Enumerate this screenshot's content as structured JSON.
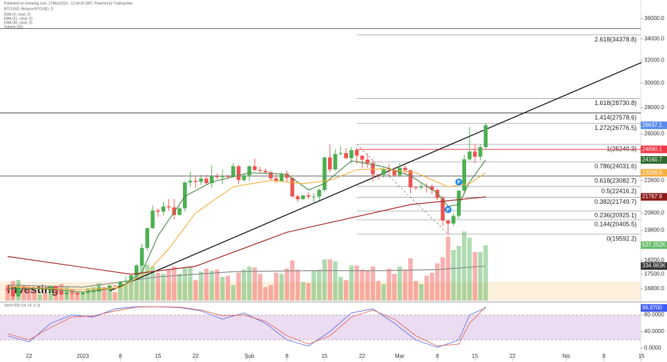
{
  "chart_data": {
    "type": "candlestick",
    "published": "Published on Investing.com, 17/Mar/2023 - 12:34:20 GMT, Powered by TradingView",
    "symbol": "BTC/USD, Binance:BTCUSD, D",
    "watermark": "Investing",
    "log_scale": true,
    "ylim": [
      16250,
      37200
    ],
    "yticks": [
      {
        "value": 36000,
        "label": "36000.0"
      },
      {
        "value": 34000,
        "label": "34000.0"
      },
      {
        "value": 32000,
        "label": "32000.0"
      },
      {
        "value": 30000,
        "label": "30000.0"
      },
      {
        "value": 28000,
        "label": "28000.0"
      },
      {
        "value": 26000,
        "label": "26000.0"
      },
      {
        "value": 22800,
        "label": "22800.0"
      },
      {
        "value": 20800,
        "label": "20800.0"
      },
      {
        "value": 19800,
        "label": "19800.0"
      },
      {
        "value": 18200,
        "label": "18200.0"
      },
      {
        "value": 17500,
        "label": "17500.0"
      },
      {
        "value": 16800,
        "label": "16800.0"
      }
    ],
    "xticks": [
      {
        "value": 4,
        "label": "22"
      },
      {
        "value": 14,
        "label": "2023"
      },
      {
        "value": 21,
        "label": "8"
      },
      {
        "value": 28,
        "label": "15"
      },
      {
        "value": 35,
        "label": "22"
      },
      {
        "value": 45,
        "label": "Şub"
      },
      {
        "value": 52,
        "label": "8"
      },
      {
        "value": 59,
        "label": "15"
      },
      {
        "value": 66,
        "label": "22"
      },
      {
        "value": 73,
        "label": "Mar"
      },
      {
        "value": 80,
        "label": "8"
      },
      {
        "value": 87,
        "label": "15"
      },
      {
        "value": 94,
        "label": "22"
      },
      {
        "value": 104,
        "label": "Nis"
      },
      {
        "value": 111,
        "label": "8"
      },
      {
        "value": 118,
        "label": "15"
      }
    ],
    "up_color": "#4caf50",
    "down_color": "#ef5350",
    "open": [
      16800,
      16750,
      16440,
      16900,
      16830,
      16820,
      16780,
      16840,
      16830,
      16920,
      16700,
      16540,
      16630,
      16600,
      16540,
      16610,
      16670,
      16670,
      16850,
      16830,
      16950,
      16940,
      17120,
      17180,
      17440,
      17940,
      18850,
      19930,
      20950,
      20880,
      21190,
      21130,
      20680,
      21080,
      22670,
      22780,
      22710,
      22920,
      22630,
      23060,
      23010,
      23080,
      23030,
      23740,
      22830,
      23130,
      23730,
      23490,
      23430,
      23330,
      22930,
      22760,
      23240,
      22960,
      21800,
      21630,
      21860,
      21780,
      21780,
      22200,
      24330,
      23520,
      24570,
      24630,
      24280,
      24840,
      24450,
      24180,
      23940,
      23190,
      23160,
      23560,
      23490,
      23140,
      23630,
      23470,
      22360,
      22350,
      22430,
      22410,
      22200,
      21700,
      20360,
      20190,
      20630,
      22160,
      24200,
      24740,
      24380,
      25050
    ],
    "high": [
      16900,
      16800,
      17050,
      16960,
      16950,
      16860,
      16870,
      16860,
      16950,
      16960,
      16790,
      16650,
      16660,
      16630,
      16630,
      16760,
      16780,
      16990,
      16870,
      17000,
      16960,
      17170,
      17390,
      17480,
      18000,
      19080,
      19950,
      21260,
      21080,
      21470,
      21640,
      21650,
      21190,
      22750,
      23360,
      23080,
      23160,
      23180,
      23790,
      23260,
      23520,
      23170,
      23950,
      23810,
      23280,
      23800,
      24240,
      23700,
      23580,
      23420,
      23160,
      23340,
      23450,
      22990,
      21930,
      21900,
      22070,
      21990,
      22320,
      24370,
      25250,
      24890,
      25120,
      24990,
      25050,
      25000,
      24480,
      24600,
      24130,
      23220,
      23690,
      23890,
      23650,
      23950,
      23790,
      23480,
      22410,
      22610,
      22600,
      22540,
      22280,
      21840,
      20360,
      20790,
      22180,
      24500,
      26500,
      25250,
      25240,
      26820
    ],
    "low": [
      16680,
      16300,
      16400,
      16760,
      16570,
      16750,
      16770,
      16780,
      16800,
      16600,
      16460,
      16340,
      16500,
      16490,
      16520,
      16550,
      16600,
      16650,
      16760,
      16670,
      16910,
      16910,
      17110,
      17150,
      17320,
      17910,
      18710,
      19890,
      20560,
      20650,
      20930,
      20420,
      20660,
      20880,
      22400,
      22300,
      22510,
      22560,
      22340,
      22880,
      22550,
      22880,
      22980,
      22580,
      22720,
      22750,
      23380,
      23250,
      23260,
      22760,
      22640,
      22750,
      22680,
      21700,
      21450,
      21600,
      21630,
      21360,
      21550,
      22050,
      23340,
      23440,
      24440,
      24200,
      23900,
      23930,
      23600,
      23620,
      22730,
      22860,
      22980,
      23100,
      23030,
      23020,
      23200,
      21970,
      22200,
      22210,
      22030,
      21930,
      21580,
      20040,
      19570,
      20060,
      20450,
      21900,
      24100,
      23930,
      24140,
      24930
    ],
    "close": [
      16750,
      16440,
      16900,
      16830,
      16820,
      16780,
      16840,
      16830,
      16920,
      16700,
      16540,
      16630,
      16600,
      16540,
      16610,
      16670,
      16670,
      16850,
      16830,
      16950,
      16940,
      17120,
      17180,
      17440,
      17940,
      18850,
      19930,
      20950,
      20880,
      21190,
      21130,
      20680,
      21080,
      22670,
      22780,
      22710,
      22920,
      22630,
      23060,
      23010,
      23080,
      23030,
      23740,
      22830,
      23130,
      23730,
      23490,
      23430,
      23330,
      22930,
      22760,
      23240,
      22960,
      21800,
      21630,
      21860,
      21780,
      21780,
      22200,
      24330,
      23520,
      24570,
      24630,
      24280,
      24840,
      24450,
      24180,
      23940,
      23190,
      23160,
      23560,
      23490,
      23140,
      23630,
      23470,
      22360,
      22350,
      22430,
      22410,
      22200,
      21700,
      20360,
      20190,
      20630,
      22160,
      24200,
      24740,
      24380,
      25050,
      26637.1
    ],
    "volume": [
      150,
      190,
      200,
      140,
      130,
      90,
      60,
      70,
      110,
      140,
      160,
      130,
      110,
      80,
      70,
      120,
      130,
      170,
      110,
      130,
      80,
      140,
      160,
      200,
      250,
      340,
      350,
      330,
      270,
      260,
      300,
      330,
      260,
      320,
      330,
      200,
      280,
      310,
      290,
      300,
      230,
      240,
      150,
      270,
      300,
      330,
      320,
      260,
      130,
      150,
      270,
      260,
      310,
      390,
      300,
      180,
      170,
      290,
      300,
      400,
      400,
      380,
      230,
      200,
      340,
      340,
      300,
      290,
      330,
      190,
      160,
      310,
      260,
      330,
      300,
      410,
      190,
      160,
      240,
      270,
      360,
      420,
      620,
      490,
      530,
      670,
      610,
      470,
      470,
      537.252
    ],
    "volume_lim": [
      0,
      2850
    ],
    "volume_ma": {
      "name": "Volume (20)",
      "color": "#888888",
      "x": [
        0,
        14,
        28,
        42,
        56,
        70,
        80,
        89
      ],
      "values": [
        150,
        130,
        230,
        280,
        290,
        290,
        300,
        334.983
      ]
    },
    "ema_lines": [
      {
        "name": "EMA (9, close, 0)",
        "color": "#4f8a4f",
        "x": [
          0,
          7,
          14,
          21,
          25,
          28,
          33,
          38,
          45,
          52,
          56,
          59,
          64,
          70,
          75,
          80,
          82,
          84,
          86,
          89
        ],
        "values": [
          16800,
          16800,
          16640,
          16860,
          17600,
          19500,
          21800,
          22700,
          23300,
          23200,
          22200,
          22600,
          24100,
          23700,
          23100,
          22000,
          21200,
          21300,
          22700,
          24160.7
        ]
      },
      {
        "name": "EMA (21, close, 0)",
        "color": "#f5b041",
        "x": [
          0,
          14,
          21,
          26,
          30,
          35,
          42,
          49,
          55,
          60,
          65,
          70,
          76,
          82,
          86,
          89
        ],
        "values": [
          16900,
          16750,
          16850,
          17600,
          18800,
          20800,
          22400,
          22800,
          22600,
          22800,
          23500,
          23550,
          23300,
          22400,
          22600,
          23296.8
        ]
      },
      {
        "name": "EMA (50, close, 0)",
        "color": "#a32020",
        "x": [
          0,
          23,
          35,
          52,
          75,
          89
        ],
        "values": [
          18400,
          17500,
          17900,
          19700,
          21300,
          21767.9
        ]
      }
    ],
    "badges": [
      {
        "value": 26637.1,
        "label": "26637.1",
        "color": "#5b8def"
      },
      {
        "value": 24890.1,
        "label": "24890.1",
        "color": "#f23645"
      },
      {
        "value": 24160.7,
        "label": "24160.7",
        "color": "#2e6b2e"
      },
      {
        "value": 23296.8,
        "label": "23296.8",
        "color": "#f5b041"
      },
      {
        "value": 21767.9,
        "label": "21767.9",
        "color": "#8b1a1a"
      }
    ],
    "volume_badges": [
      {
        "value": 537.252,
        "label": "537.252K",
        "color": "#66bb6a"
      },
      {
        "value": 334.983,
        "label": "334.983K",
        "color": "#333333"
      }
    ],
    "red_level": {
      "value": 24890.1,
      "color": "#f23645",
      "from": 65
    },
    "hlines": [
      35000
    ],
    "fib_from": 65,
    "fib_levels": [
      {
        "value": 34378.8,
        "label": "2.618(34378.8)"
      },
      {
        "value": 28730.8,
        "label": "1.618(28730.8)"
      },
      {
        "value": 27578.6,
        "label": "1.414(27578.6)",
        "extend": true
      },
      {
        "value": 26776.5,
        "label": "1.272(26776.5)"
      },
      {
        "value": 25240.3,
        "label": "1(25240.3)"
      },
      {
        "value": 24031.6,
        "label": "0.786(24031.6)"
      },
      {
        "value": 23082.7,
        "label": "0.618(23082.7)",
        "extend": true
      },
      {
        "value": 22416.2,
        "label": "0.5(22416.2)"
      },
      {
        "value": 21749.7,
        "label": "0.382(21749.7)"
      },
      {
        "value": 20925.1,
        "label": "0.236(20925.1)"
      },
      {
        "value": 20405.5,
        "label": "0.144(20405.5)"
      },
      {
        "value": 19592.2,
        "label": "0(19592.2)"
      }
    ],
    "trendline": {
      "x": [
        19,
        118
      ],
      "values": [
        16700,
        31800
      ]
    },
    "fib_anchor": {
      "x": [
        65,
        82
      ],
      "values": [
        25240.3,
        19592.2
      ]
    },
    "event_markers": [
      {
        "x": 84,
        "value": 22700,
        "label": "P"
      },
      {
        "x": 82,
        "value": 21000,
        "label": "P"
      }
    ],
    "rsi": {
      "title": "Stoch RSI (14, 14, 3, 3)",
      "ylim": [
        -30,
        105
      ],
      "band": [
        20,
        80
      ],
      "yticks": [
        {
          "value": 80,
          "label": "80.0000"
        },
        {
          "value": 40,
          "label": "40.0000"
        },
        {
          "value": 0,
          "label": "0.0000"
        }
      ],
      "series": [
        {
          "color": "#5b6ee1",
          "x": [
            0,
            4,
            8,
            12,
            16,
            20,
            24,
            28,
            32,
            36,
            40,
            44,
            48,
            52,
            56,
            60,
            64,
            68,
            72,
            76,
            80,
            84,
            86,
            89
          ],
          "values": [
            30,
            15,
            60,
            80,
            75,
            95,
            100,
            100,
            98,
            90,
            70,
            85,
            60,
            20,
            5,
            40,
            85,
            95,
            60,
            20,
            2,
            20,
            80,
            96.97
          ]
        },
        {
          "color": "#e0605a",
          "x": [
            0,
            4,
            8,
            12,
            16,
            20,
            24,
            28,
            32,
            36,
            40,
            44,
            48,
            52,
            56,
            60,
            64,
            68,
            72,
            76,
            80,
            84,
            86,
            89
          ],
          "values": [
            35,
            20,
            50,
            75,
            78,
            90,
            99,
            100,
            99,
            92,
            78,
            80,
            65,
            30,
            10,
            30,
            75,
            92,
            70,
            30,
            5,
            10,
            60,
            100
          ]
        }
      ],
      "badge": {
        "value": 96.97,
        "label": "96.9700",
        "color": "#3d5afe"
      }
    }
  }
}
